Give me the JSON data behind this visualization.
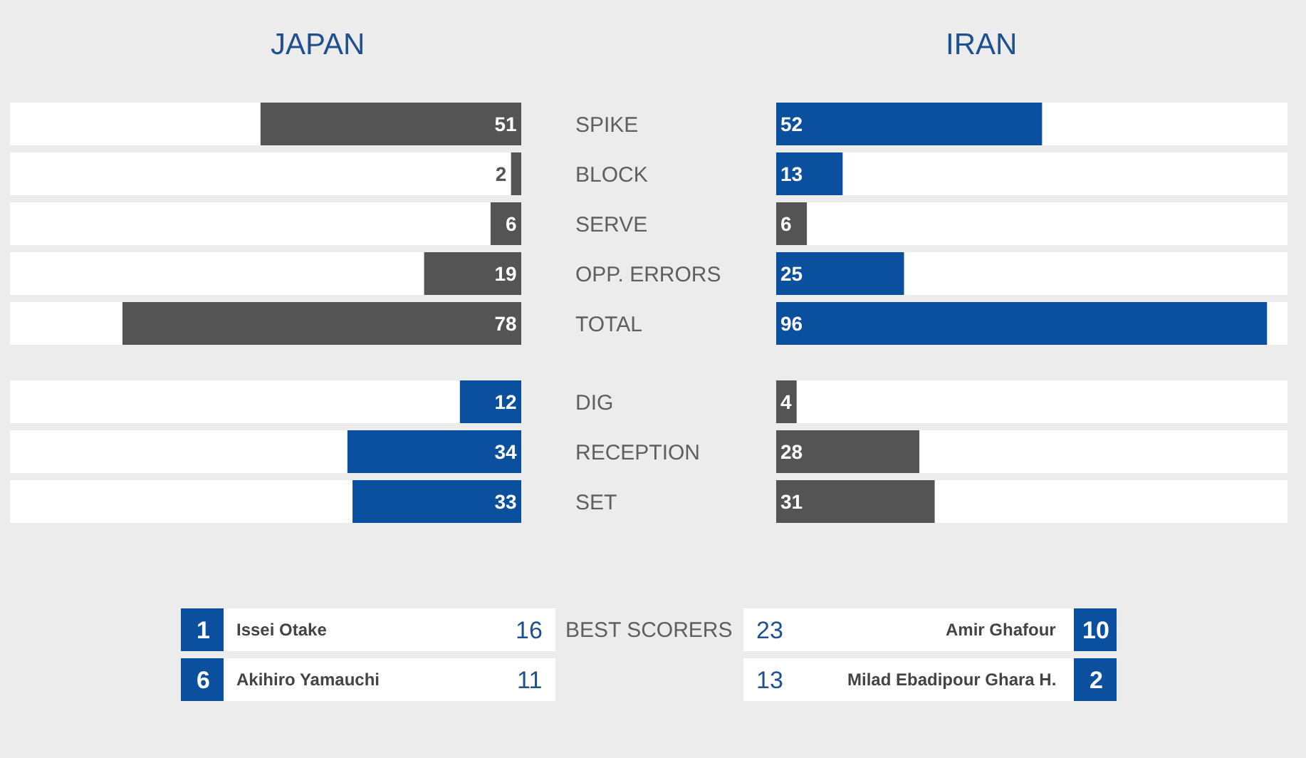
{
  "chart_data": [
    {
      "type": "bar",
      "title": "JAPAN",
      "orientation": "horizontal",
      "categories": [
        "SPIKE",
        "BLOCK",
        "SERVE",
        "OPP. ERRORS",
        "TOTAL"
      ],
      "values": [
        51,
        2,
        6,
        19,
        78
      ],
      "colors": [
        "#545454",
        "#545454",
        "#545454",
        "#545454",
        "#545454"
      ],
      "xlim": [
        100,
        0
      ],
      "data_labels": true,
      "tick_labels": "y"
    },
    {
      "type": "bar",
      "title": "IRAN",
      "orientation": "horizontal",
      "categories": [
        null,
        null,
        null,
        null,
        null
      ],
      "values": [
        52,
        13,
        6,
        25,
        96
      ],
      "colors": [
        "#0b4f9f",
        "#0b4f9f",
        "#545454",
        "#0b4f9f",
        "#0b4f9f"
      ],
      "xlim": [
        0,
        100
      ],
      "data_labels": true,
      "tick_labels": false
    },
    {
      "type": "bar",
      "orientation": "horizontal",
      "categories": [
        "DIG",
        "RECEPTION",
        "SET"
      ],
      "values": [
        12,
        34,
        33
      ],
      "colors": [
        "#0b4f9f",
        "#0b4f9f",
        "#0b4f9f"
      ],
      "xlim": [
        100,
        0
      ],
      "data_labels": true,
      "tick_labels": "y"
    },
    {
      "type": "bar",
      "orientation": "horizontal",
      "categories": [
        null,
        null,
        null
      ],
      "values": [
        4,
        28,
        31
      ],
      "colors": [
        "#545454",
        "#545454",
        "#545454"
      ],
      "xlim": [
        0,
        100
      ],
      "data_labels": true,
      "tick_labels": false
    },
    {
      "type": "other",
      "title": "BEST SCORERS",
      "annotations": [
        "1",
        "Issei Otake",
        "16",
        "23",
        "Amir Ghafour",
        "10",
        "6",
        "Akihiro Yamauchi",
        "11",
        "13",
        "Milad Ebadipour Ghara H.",
        "2"
      ]
    }
  ]
}
